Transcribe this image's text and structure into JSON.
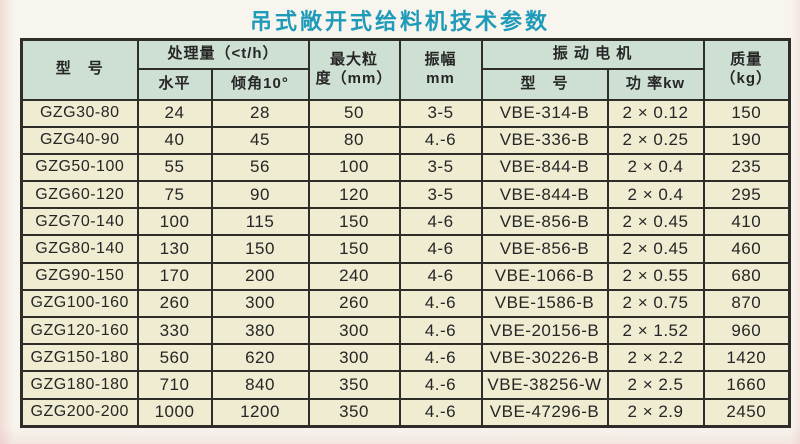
{
  "title": "吊式敞开式给料机技术参数",
  "colors": {
    "title": "#1f9bba",
    "header_bg": "#cde0d3",
    "cell_bg": "#efecd1",
    "border": "#2e2d29",
    "text": "#262626"
  },
  "table": {
    "header": {
      "model": "型　号",
      "throughput": "处理量（<t/h）",
      "horizontal": "水平",
      "incline": "倾角10°",
      "max_size_line1": "最大粒",
      "max_size_line2": "度（mm）",
      "amplitude_line1": "振幅",
      "amplitude_line2": "mm",
      "motor": "振 动 电 机",
      "motor_model": "型　号",
      "motor_power": "功 率kw",
      "mass_line1": "质量",
      "mass_line2": "（kg）"
    },
    "rows": [
      [
        "GZG30-80",
        "24",
        "28",
        "50",
        "3-5",
        "VBE-314-B",
        "2 × 0.12",
        "150"
      ],
      [
        "GZG40-90",
        "40",
        "45",
        "80",
        "4.-6",
        "VBE-336-B",
        "2 × 0.25",
        "190"
      ],
      [
        "GZG50-100",
        "55",
        "56",
        "100",
        "3-5",
        "VBE-844-B",
        "2 × 0.4",
        "235"
      ],
      [
        "GZG60-120",
        "75",
        "90",
        "120",
        "3-5",
        "VBE-844-B",
        "2 × 0.4",
        "295"
      ],
      [
        "GZG70-140",
        "100",
        "115",
        "150",
        "4-6",
        "VBE-856-B",
        "2 × 0.45",
        "410"
      ],
      [
        "GZG80-140",
        "130",
        "150",
        "150",
        "4-6",
        "VBE-856-B",
        "2 × 0.45",
        "460"
      ],
      [
        "GZG90-150",
        "170",
        "200",
        "240",
        "4-6",
        "VBE-1066-B",
        "2 × 0.55",
        "680"
      ],
      [
        "GZG100-160",
        "260",
        "300",
        "260",
        "4.-6",
        "VBE-1586-B",
        "2 × 0.75",
        "870"
      ],
      [
        "GZG120-160",
        "330",
        "380",
        "300",
        "4.-6",
        "VBE-20156-B",
        "2 × 1.52",
        "960"
      ],
      [
        "GZG150-180",
        "560",
        "620",
        "300",
        "4.-6",
        "VBE-30226-B",
        "2 × 2.2",
        "1420"
      ],
      [
        "GZG180-180",
        "710",
        "840",
        "350",
        "4.-6",
        "VBE-38256-W",
        "2 × 2.5",
        "1660"
      ],
      [
        "GZG200-200",
        "1000",
        "1200",
        "350",
        "4.-6",
        "VBE-47296-B",
        "2 × 2.9",
        "2450"
      ]
    ]
  }
}
